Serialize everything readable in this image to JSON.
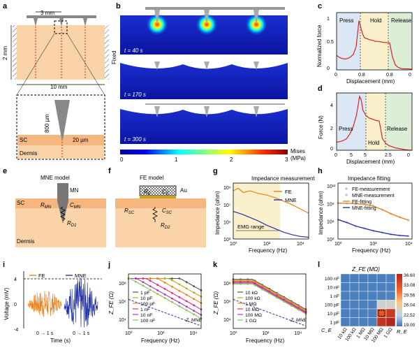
{
  "labels": {
    "a": "a",
    "b": "b",
    "c": "c",
    "d": "d",
    "e": "e",
    "f": "f",
    "g": "g",
    "h": "h",
    "i": "i",
    "j": "j",
    "k": "k",
    "l": "l"
  },
  "panel_a": {
    "spacing": "3 mm",
    "height": "2 mm",
    "width": "10 mm",
    "needle_len": "800 µm",
    "sc_thick": "20 µm",
    "sc": "SC",
    "dermis": "Dermis",
    "fixed": "Fixed"
  },
  "panel_b": {
    "times": [
      "t = 40 s",
      "t = 170 s",
      "t = 300 s"
    ],
    "colorbar_title": "Mises",
    "colorbar_unit": "(MPa)",
    "colorbar_ticks": [
      "0",
      "1",
      "2",
      "3"
    ]
  },
  "panel_e": {
    "title": "MNE model",
    "mn": "MN",
    "sc": "SC",
    "dermis": "Dermis",
    "r_mn": "R",
    "r_mn_sub": "MN",
    "c_mn": "C",
    "c_mn_sub": "MN",
    "r_d1": "R",
    "r_d1_sub": "D1"
  },
  "panel_f": {
    "title": "FE model",
    "au": "Au",
    "re": "R",
    "re_sub": "E",
    "ce": "C",
    "ce_sub": "E",
    "rsc": "R",
    "rsc_sub": "SC",
    "csc": "C",
    "csc_sub": "SC",
    "rd2": "R",
    "rd2_sub": "D2"
  },
  "chart_data": [
    {
      "panel": "c",
      "type": "line",
      "xlabel": "Displacement (mm)",
      "ylabel": "Normalized force",
      "ylim": [
        0,
        1
      ],
      "yticks": [
        "0",
        "0.5",
        "1"
      ],
      "xticks": [
        "0",
        "0.8",
        "0.8",
        "0"
      ],
      "phases": [
        "Press",
        "Hold",
        "Release"
      ],
      "x": [
        0,
        0.1,
        0.2,
        0.3,
        0.4,
        0.5,
        0.6,
        0.7,
        0.75,
        0.8,
        0.85,
        0.9,
        0.95,
        1.0,
        1.1,
        1.2,
        1.3,
        1.4,
        1.5,
        1.6,
        1.7,
        1.8,
        1.9,
        2.0,
        2.1,
        2.2,
        2.3,
        2.4,
        2.5,
        2.6,
        2.7
      ],
      "y": [
        0.28,
        0.24,
        0.22,
        0.21,
        0.22,
        0.25,
        0.3,
        0.45,
        0.7,
        0.95,
        0.85,
        0.75,
        0.67,
        0.62,
        0.6,
        0.58,
        0.57,
        0.55,
        0.55,
        0.54,
        0.53,
        0.53,
        0.52,
        0.25,
        0.1,
        0.05,
        0.03,
        0.02,
        0.02,
        0.02,
        0.01
      ]
    },
    {
      "panel": "d",
      "type": "line",
      "xlabel": "Displacement (mm)",
      "ylabel": "Force (N)",
      "ylim": [
        0,
        5
      ],
      "yticks": [
        "0",
        "2",
        "4"
      ],
      "xticks": [
        "0",
        "5",
        "5",
        "2.5",
        "0"
      ],
      "phases": [
        "Press",
        "Hold",
        "Release"
      ],
      "x": [
        0,
        0.1,
        0.2,
        0.3,
        0.4,
        0.5,
        0.6,
        0.65,
        0.7,
        0.75,
        0.8,
        0.9,
        1.0,
        1.1,
        1.2,
        1.3,
        1.4,
        1.5,
        1.6,
        1.7,
        1.8,
        1.9,
        2.0,
        2.1,
        2.2,
        2.3
      ],
      "y": [
        0.7,
        0.75,
        0.85,
        1.0,
        1.4,
        2.0,
        3.0,
        3.8,
        4.7,
        4.4,
        3.5,
        3.0,
        2.8,
        2.7,
        2.6,
        2.55,
        1.0,
        0.6,
        0.4,
        0.3,
        0.2,
        0.15,
        0.1,
        0.05,
        0.02,
        0.01
      ]
    },
    {
      "panel": "g",
      "type": "line",
      "title": "Impedance measurement",
      "xlabel": "Frequency (Hz)",
      "ylabel": "Impedance (ohm)",
      "yticks": [
        "10³",
        "10⁵",
        "10⁷",
        "10⁹"
      ],
      "xticks": [
        "10⁰",
        "10²",
        "10⁴"
      ],
      "annotation": "EMG range",
      "series": [
        {
          "name": "FE",
          "color": "#e8821e",
          "logx": [
            0,
            0.3,
            0.6,
            1,
            1.5,
            2,
            2.5,
            3,
            3.5,
            4,
            4.5
          ],
          "logy": [
            8.6,
            8.9,
            8.4,
            8.6,
            8.3,
            8.1,
            7.8,
            7.4,
            7.0,
            6.5,
            6.0
          ]
        },
        {
          "name": "MNE",
          "color": "#2433a8",
          "logx": [
            0,
            0.5,
            1,
            1.5,
            2,
            2.5,
            3,
            3.5,
            4,
            4.5
          ],
          "logy": [
            6.2,
            5.9,
            5.5,
            5.1,
            4.6,
            4.2,
            3.8,
            3.5,
            3.3,
            3.2
          ]
        }
      ]
    },
    {
      "panel": "h",
      "type": "scatter",
      "title": "Impedance fitting",
      "xlabel": "Frequency (Hz)",
      "ylabel": "Impedance (ohm)",
      "yticks": [
        "10³",
        "10⁶",
        "10⁹",
        "10¹²"
      ],
      "xticks": [
        "10⁰",
        "10²",
        "10⁴"
      ],
      "series": [
        {
          "name": "FE-measurement",
          "color": "#b9b9d6"
        },
        {
          "name": "MNE-measurement",
          "color": "#b9b9d6"
        },
        {
          "name": "FE-fitting",
          "color": "#e8821e"
        },
        {
          "name": "MNE-fitting",
          "color": "#2433a8"
        }
      ],
      "fe_logx": [
        0,
        0.5,
        1,
        1.5,
        2,
        2.5,
        3,
        3.5,
        4
      ],
      "fe_logy": [
        9.1,
        9.05,
        9.0,
        8.9,
        8.6,
        8.0,
        7.3,
        6.7,
        6.2
      ],
      "mne_logx": [
        0,
        0.5,
        1,
        1.5,
        2,
        2.5,
        3,
        3.5,
        4
      ],
      "mne_logy": [
        6.3,
        5.8,
        5.2,
        4.8,
        4.4,
        4.1,
        3.8,
        3.6,
        3.5
      ]
    },
    {
      "panel": "i",
      "type": "line",
      "ylabel": "Voltage (mV)",
      "xlabel": "Time (s)",
      "yticks": [
        "-4",
        "0",
        "4"
      ],
      "series": [
        {
          "name": "FE",
          "color": "#e8821e",
          "xrange": "0 → 1 s"
        },
        {
          "name": "MNE",
          "color": "#2433a8",
          "xrange": "0 → 1 s"
        }
      ]
    },
    {
      "panel": "j",
      "type": "line",
      "ylabel": "Z_FE (Ω)",
      "xlabel": "Frequency (Hz)",
      "yticks": [
        "10⁴",
        "10⁶",
        "10⁸"
      ],
      "xticks": [
        "10⁰",
        "10²",
        "10⁴"
      ],
      "ref": "Z_MNE",
      "series": [
        {
          "name": "1 pF",
          "color": "#555555",
          "corner": 3.2
        },
        {
          "name": "10 pF",
          "color": "#c8a420",
          "corner": 2.5
        },
        {
          "name": "100 pF",
          "color": "#e8821e",
          "corner": 1.8
        },
        {
          "name": "1 nF",
          "color": "#d12e8c",
          "corner": 1.1
        },
        {
          "name": "10 nF",
          "color": "#a33cc4",
          "corner": 0.5
        },
        {
          "name": "100 nF",
          "color": "#8bc34a",
          "corner": 0.1
        }
      ]
    },
    {
      "panel": "k",
      "type": "line",
      "ylabel": "Z_FE (Ω)",
      "xlabel": "Frequency (Hz)",
      "yticks": [
        "10⁴",
        "10⁶",
        "10⁸"
      ],
      "xticks": [
        "10⁰",
        "10²",
        "10⁴"
      ],
      "ref": "Z_MNE",
      "series": [
        {
          "name": "10 kΩ",
          "color": "#555555",
          "level": 8.4
        },
        {
          "name": "100 kΩ",
          "color": "#c8a420",
          "level": 8.3
        },
        {
          "name": "1 MΩ",
          "color": "#e8821e",
          "level": 8.2
        },
        {
          "name": "10 MΩ",
          "color": "#d12e8c",
          "level": 8.1
        },
        {
          "name": "100 MΩ",
          "color": "#a33cc4",
          "level": 8.0
        },
        {
          "name": "1 GΩ",
          "color": "#8bc34a",
          "level": 7.9
        }
      ]
    },
    {
      "panel": "l",
      "type": "heatmap",
      "title": "Z_FE (MΩ)",
      "rows": [
        "100 nF",
        "10 nF",
        "1 nF",
        "100 pF",
        "10 pF",
        "1 pF"
      ],
      "cols": [
        "10 kΩ",
        "100 kΩ",
        "1 MΩ",
        "10 MΩ",
        "100 MΩ",
        "1 GΩ"
      ],
      "row_label": "C_E",
      "col_label": "R_E",
      "values": [
        [
          19.5,
          19.5,
          19.5,
          19.5,
          19.5,
          19.6
        ],
        [
          19.5,
          19.5,
          19.5,
          19.5,
          19.5,
          19.6
        ],
        [
          19.5,
          19.5,
          19.5,
          19.5,
          19.6,
          19.7
        ],
        [
          19.5,
          19.5,
          19.5,
          19.6,
          24.5,
          25.0
        ],
        [
          19.5,
          19.5,
          19.5,
          19.6,
          33.0,
          35.0
        ],
        [
          19.5,
          19.5,
          19.5,
          19.6,
          35.5,
          36.6
        ]
      ],
      "colorbar_ticks": [
        "36.60",
        "33.08",
        "29.56",
        "26.04",
        "22.52",
        "19.00"
      ]
    }
  ]
}
